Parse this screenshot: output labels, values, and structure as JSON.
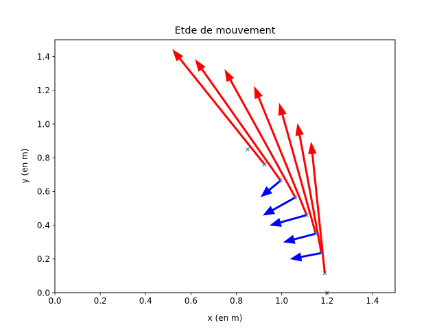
{
  "chart_data": {
    "type": "scatter",
    "title": "Etde de mouvement",
    "xlabel": "x (en m)",
    "ylabel": "y (en m)",
    "xlim": [
      0,
      1.5
    ],
    "ylim": [
      0,
      1.5
    ],
    "xticks": [
      "0.0",
      "0.2",
      "0.4",
      "0.6",
      "0.8",
      "1.0",
      "1.2",
      "1.4"
    ],
    "yticks": [
      "0.0",
      "0.2",
      "0.4",
      "0.6",
      "0.8",
      "1.0",
      "1.2",
      "1.4"
    ],
    "grid": false,
    "points": {
      "x": [
        1.2,
        1.19,
        1.175,
        1.15,
        1.11,
        1.06,
        0.995,
        0.925,
        0.85
      ],
      "y": [
        0.0,
        0.115,
        0.235,
        0.35,
        0.46,
        0.565,
        0.665,
        0.76,
        0.85
      ]
    },
    "red_vectors": [
      {
        "x0": 1.19,
        "y0": 0.115,
        "x1": 1.13,
        "y1": 0.89
      },
      {
        "x0": 1.175,
        "y0": 0.235,
        "x1": 1.07,
        "y1": 1.0
      },
      {
        "x0": 1.15,
        "y0": 0.35,
        "x1": 0.99,
        "y1": 1.12
      },
      {
        "x0": 1.11,
        "y0": 0.46,
        "x1": 0.88,
        "y1": 1.22
      },
      {
        "x0": 1.06,
        "y0": 0.565,
        "x1": 0.75,
        "y1": 1.32
      },
      {
        "x0": 0.995,
        "y0": 0.665,
        "x1": 0.62,
        "y1": 1.38
      },
      {
        "x0": 0.925,
        "y0": 0.76,
        "x1": 0.52,
        "y1": 1.44
      }
    ],
    "blue_vectors": [
      {
        "x0": 1.175,
        "y0": 0.235,
        "x1": 1.04,
        "y1": 0.2
      },
      {
        "x0": 1.15,
        "y0": 0.35,
        "x1": 1.01,
        "y1": 0.3
      },
      {
        "x0": 1.11,
        "y0": 0.46,
        "x1": 0.95,
        "y1": 0.4
      },
      {
        "x0": 1.06,
        "y0": 0.565,
        "x1": 0.92,
        "y1": 0.46
      },
      {
        "x0": 0.995,
        "y0": 0.665,
        "x1": 0.91,
        "y1": 0.57
      }
    ],
    "colors": {
      "points": "#1f77b4",
      "red_vectors": "#ff0000",
      "blue_vectors": "#0000ff",
      "axes": "#000000"
    }
  }
}
